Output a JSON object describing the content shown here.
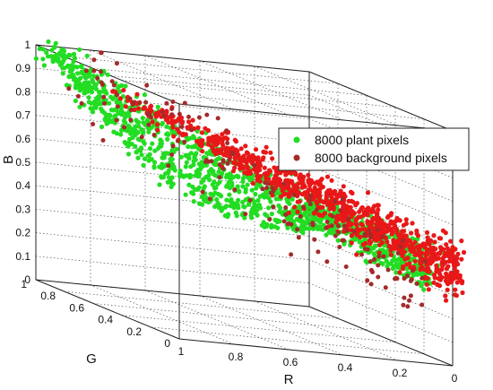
{
  "chart_data": {
    "type": "scatter",
    "projection": "3d",
    "title": "",
    "axes": {
      "x": {
        "label": "R",
        "range": [
          0,
          1
        ],
        "ticks": [
          "1",
          "0.8",
          "0.6",
          "0.4",
          "0.2",
          "0"
        ],
        "tick_values": [
          1,
          0.8,
          0.6,
          0.4,
          0.2,
          0
        ]
      },
      "y": {
        "label": "G",
        "range": [
          0,
          1
        ],
        "ticks": [
          "1",
          "0.8",
          "0.6",
          "0.4",
          "0.2",
          "0"
        ],
        "tick_values": [
          1,
          0.8,
          0.6,
          0.4,
          0.2,
          0
        ]
      },
      "z": {
        "label": "B",
        "range": [
          0,
          1
        ],
        "ticks": [
          "0",
          "0.1",
          "0.2",
          "0.3",
          "0.4",
          "0.5",
          "0.6",
          "0.7",
          "0.8",
          "0.9",
          "1"
        ],
        "tick_values": [
          0,
          0.1,
          0.2,
          0.3,
          0.4,
          0.5,
          0.6,
          0.7,
          0.8,
          0.9,
          1
        ]
      }
    },
    "grid": true,
    "box": true,
    "legend": {
      "placement": "right"
    },
    "series": [
      {
        "name": "8000 plant pixels",
        "color": "#22dd22",
        "count": 8000
      },
      {
        "name": "8000 background pixels",
        "color": "#a52a2a",
        "count": 8000
      }
    ]
  }
}
